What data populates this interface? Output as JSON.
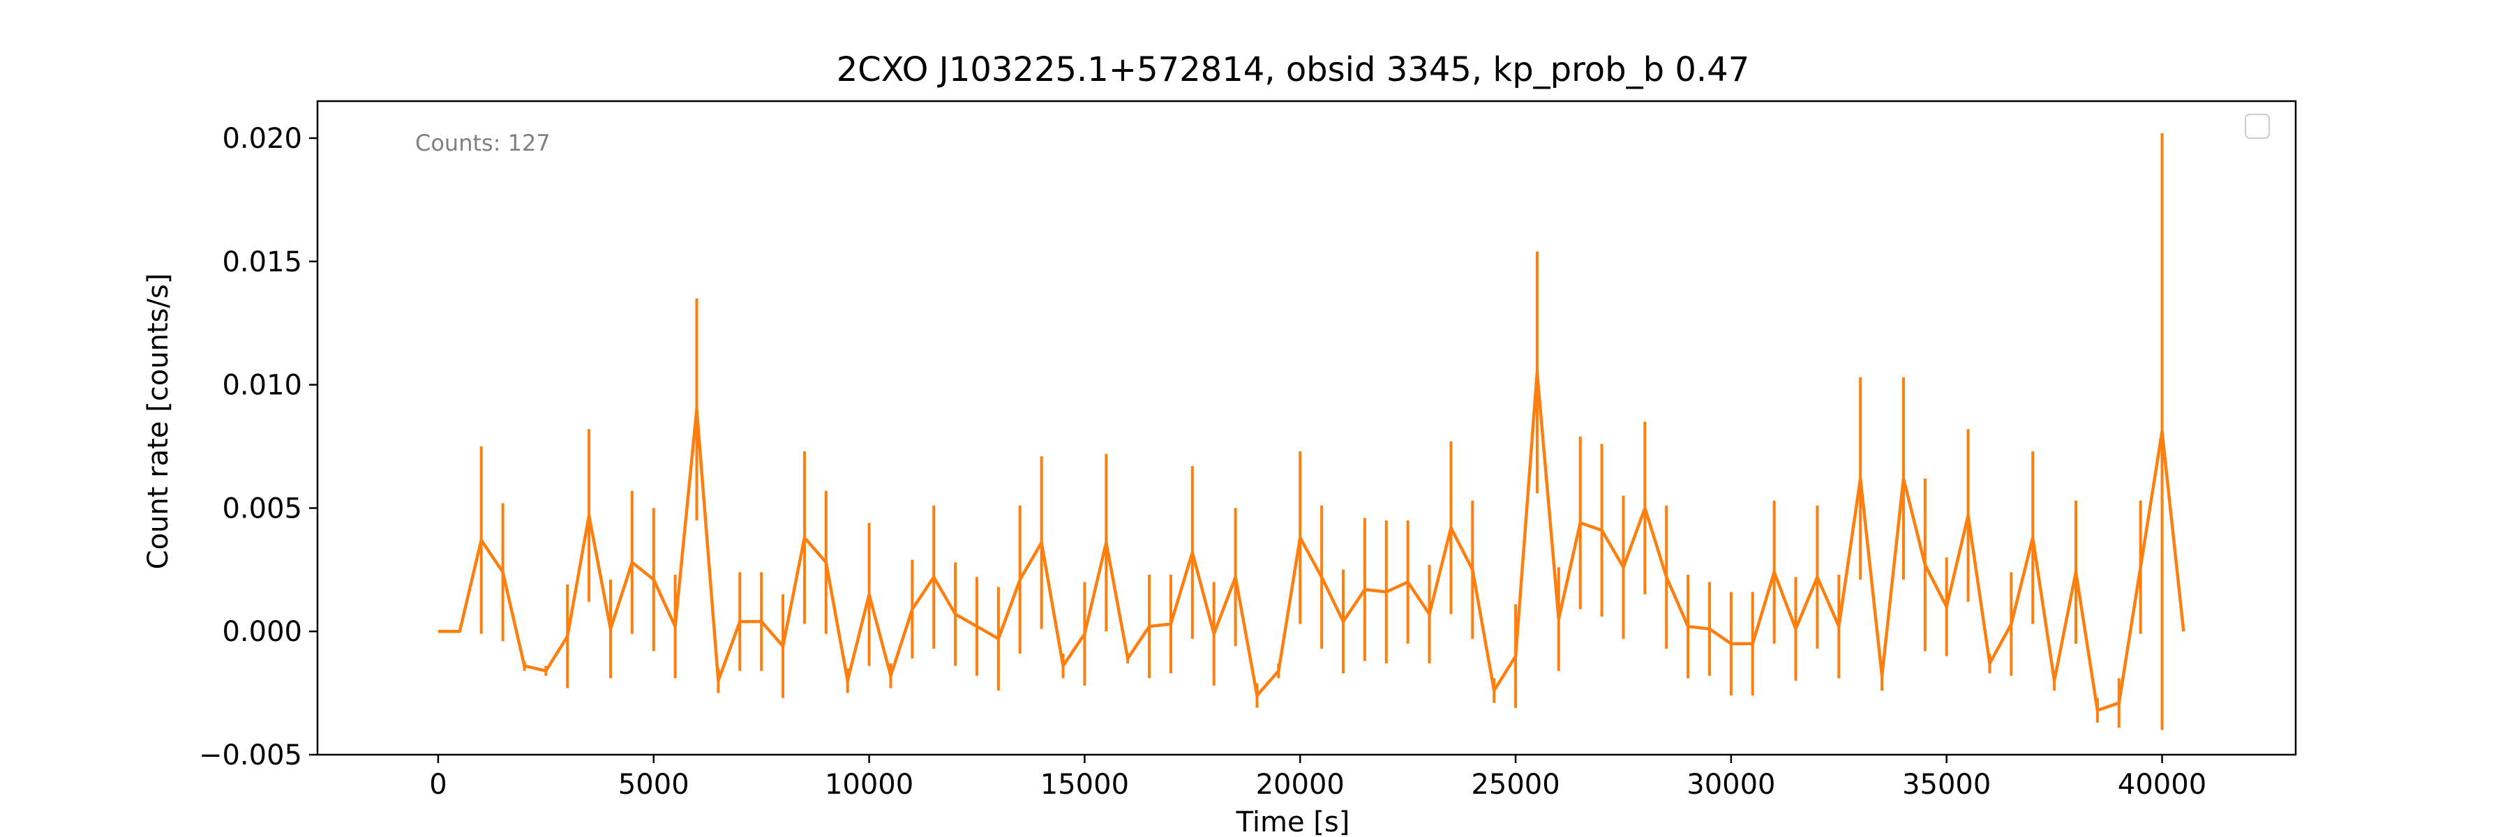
{
  "chart_data": {
    "type": "line",
    "title": "2CXO J103225.1+572814, obsid 3345, kp_prob_b 0.47",
    "xlabel": "Time [s]",
    "ylabel": "Count rate [counts/s]",
    "xlim": [
      -2800,
      43100
    ],
    "ylim": [
      -0.005,
      0.0215
    ],
    "x_ticks": [
      0,
      5000,
      10000,
      15000,
      20000,
      25000,
      30000,
      35000,
      40000
    ],
    "y_ticks": [
      -0.005,
      0.0,
      0.005,
      0.01,
      0.015,
      0.02
    ],
    "y_tick_labels": [
      "−0.005",
      "0.000",
      "0.005",
      "0.010",
      "0.015",
      "0.020"
    ],
    "annotation": "Counts: 127",
    "legend": "top-right",
    "grid": false,
    "colors": {
      "series": "#ff7f0e",
      "annotation": "#808080",
      "axes": "#000000"
    },
    "series": [
      {
        "x": [
          0,
          500,
          1000,
          1500,
          2000,
          2500,
          3000,
          3500,
          4000,
          4500,
          5000,
          5500,
          6000,
          6500,
          7000,
          7500,
          8000,
          8500,
          9000,
          9500,
          10000,
          10500,
          11000,
          11500,
          12000,
          12500,
          13000,
          13500,
          14000,
          14500,
          15000,
          15500,
          16000,
          16500,
          17000,
          17500,
          18000,
          18500,
          19000,
          19500,
          20000,
          20500,
          21000,
          21500,
          22000,
          22500,
          23000,
          23500,
          24000,
          24500,
          25000,
          25500,
          26000,
          26500,
          27000,
          27500,
          28000,
          28500,
          29000,
          29500,
          30000,
          30500,
          31000,
          31500,
          32000,
          32500,
          33000,
          33500,
          34000,
          34500,
          35000,
          35500,
          36000,
          36500,
          37000,
          37500,
          38000,
          38500,
          39000,
          39500,
          40000,
          40500
        ],
        "y": [
          0.0,
          0.0,
          0.0037,
          0.0024,
          -0.0014,
          -0.0016,
          -0.0002,
          0.0047,
          0.0001,
          0.0028,
          0.0021,
          0.0002,
          0.009,
          -0.002,
          0.0004,
          0.0004,
          -0.0006,
          0.0038,
          0.0028,
          -0.002,
          0.0015,
          -0.0018,
          0.0009,
          0.0022,
          0.0007,
          0.0002,
          -0.0003,
          0.0021,
          0.0036,
          -0.0014,
          -0.0001,
          0.0036,
          -0.0011,
          0.0002,
          0.0003,
          0.0032,
          -0.0001,
          0.0022,
          -0.0026,
          -0.0016,
          0.0038,
          0.0022,
          0.0004,
          0.0017,
          0.0016,
          0.002,
          0.0007,
          0.0042,
          0.0025,
          -0.0024,
          -0.001,
          0.0105,
          0.0005,
          0.0044,
          0.0041,
          0.0026,
          0.005,
          0.0022,
          0.0002,
          0.0001,
          -0.0005,
          -0.0005,
          0.0024,
          0.0001,
          0.0022,
          0.0002,
          0.0062,
          -0.0018,
          0.0062,
          0.0027,
          0.001,
          0.0047,
          -0.0013,
          0.0003,
          0.0038,
          -0.002,
          0.0024,
          -0.0032,
          -0.0029,
          0.0026,
          0.0081,
          0.0
        ],
        "y_err": [
          0.0,
          0.0,
          0.0038,
          0.0028,
          0.0002,
          0.0002,
          0.0021,
          0.0035,
          0.002,
          0.0029,
          0.0029,
          0.0021,
          0.0045,
          0.0005,
          0.002,
          0.002,
          0.0021,
          0.0035,
          0.0029,
          0.0005,
          0.0029,
          0.0005,
          0.002,
          0.0029,
          0.0021,
          0.002,
          0.0021,
          0.003,
          0.0035,
          0.0005,
          0.0021,
          0.0036,
          0.0002,
          0.0021,
          0.002,
          0.0035,
          0.0021,
          0.0028,
          0.0005,
          0.0003,
          0.0035,
          0.0029,
          0.0021,
          0.0029,
          0.0029,
          0.0025,
          0.002,
          0.0035,
          0.0028,
          0.0005,
          0.0021,
          0.0049,
          0.0021,
          0.0035,
          0.0035,
          0.0029,
          0.0035,
          0.0029,
          0.0021,
          0.0019,
          0.0021,
          0.0021,
          0.0029,
          0.0021,
          0.0029,
          0.0021,
          0.0041,
          0.0006,
          0.0041,
          0.0035,
          0.002,
          0.0035,
          0.0004,
          0.0021,
          0.0035,
          0.0004,
          0.0029,
          0.0005,
          0.001,
          0.0027,
          0.0121,
          0.0
        ]
      }
    ]
  }
}
